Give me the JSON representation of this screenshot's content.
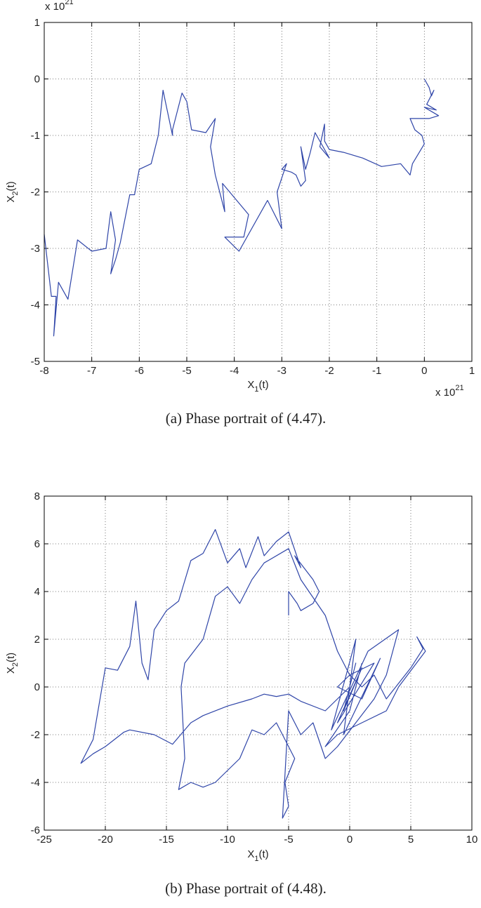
{
  "chart_data": [
    {
      "type": "line",
      "caption": "(a)  Phase portrait of (4.47).",
      "xlabel": [
        "X",
        "1",
        "(t)"
      ],
      "ylabel": [
        "X",
        "2",
        "(t)"
      ],
      "x_multiplier": [
        "x 10",
        "21"
      ],
      "y_multiplier": [
        "x 10",
        "21"
      ],
      "xlim": [
        -8,
        1
      ],
      "ylim": [
        -5,
        1
      ],
      "xticks": [
        -8,
        -7,
        -6,
        -5,
        -4,
        -3,
        -2,
        -1,
        0,
        1
      ],
      "yticks": [
        -5,
        -4,
        -3,
        -2,
        -1,
        0,
        1
      ],
      "grid": true,
      "series": [
        {
          "color": "#2f45a8",
          "x": [
            0,
            0.1,
            0.15,
            0.2,
            0.05,
            0.25,
            0,
            0.3,
            0.1,
            -0.3,
            -0.2,
            -0.05,
            0,
            -0.25,
            -0.3,
            -0.5,
            -0.9,
            -1.3,
            -1.7,
            -2.0,
            -2.1,
            -2.1,
            -2.2,
            -2.0,
            -2.3,
            -2.4,
            -2.5,
            -2.6,
            -2.5,
            -2.6,
            -2.7,
            -2.8,
            -3.0,
            -2.9,
            -3.1,
            -3.0,
            -3.3,
            -3.9,
            -4.2,
            -3.8,
            -3.7,
            -4.25,
            -4.2,
            -4.4,
            -4.5,
            -4.4,
            -4.6,
            -4.9,
            -5.0,
            -5.1,
            -5.3,
            -5.3,
            -5.45,
            -5.5,
            -5.6,
            -5.75,
            -6.0,
            -6.1,
            -6.2,
            -6.4,
            -6.5,
            -6.6,
            -6.5,
            -6.6,
            -6.7,
            -7.0,
            -7.3,
            -7.5,
            -7.7,
            -7.8,
            -7.75,
            -7.85,
            -8.0
          ],
          "y": [
            0,
            -0.15,
            -0.3,
            -0.2,
            -0.45,
            -0.55,
            -0.5,
            -0.65,
            -0.7,
            -0.7,
            -0.9,
            -1.0,
            -1.15,
            -1.5,
            -1.7,
            -1.5,
            -1.55,
            -1.4,
            -1.3,
            -1.25,
            -1.1,
            -0.8,
            -1.2,
            -1.4,
            -0.95,
            -1.3,
            -1.6,
            -1.2,
            -1.8,
            -1.9,
            -1.7,
            -1.65,
            -1.6,
            -1.5,
            -2.0,
            -2.65,
            -2.15,
            -3.05,
            -2.8,
            -2.8,
            -2.4,
            -1.85,
            -2.35,
            -1.7,
            -1.2,
            -0.7,
            -0.95,
            -0.9,
            -0.4,
            -0.25,
            -0.9,
            -1.0,
            -0.4,
            -0.2,
            -1.0,
            -1.5,
            -1.6,
            -2.05,
            -2.05,
            -2.9,
            -3.2,
            -3.45,
            -2.85,
            -2.35,
            -3.0,
            -3.05,
            -2.85,
            -3.9,
            -3.6,
            -4.55,
            -3.85,
            -3.85,
            -2.75
          ]
        }
      ]
    },
    {
      "type": "line",
      "caption": "(b)  Phase portrait of (4.48).",
      "xlabel": [
        "X",
        "1",
        "(t)"
      ],
      "ylabel": [
        "X",
        "2",
        "(t)"
      ],
      "xlim": [
        -25,
        10
      ],
      "ylim": [
        -6,
        8
      ],
      "xticks": [
        -25,
        -20,
        -15,
        -10,
        -5,
        0,
        5,
        10
      ],
      "yticks": [
        -6,
        -4,
        -2,
        0,
        2,
        4,
        6,
        8
      ],
      "grid": true,
      "series": [
        {
          "color": "#2f45a8",
          "x": [
            -5,
            -5,
            -4.3,
            -4,
            -3,
            -2.5,
            -3,
            -4.5,
            -4,
            -5,
            -6,
            -7,
            -7.5,
            -8.5,
            -9,
            -10,
            -11,
            -12,
            -13,
            -14,
            -15,
            -16,
            -16.5,
            -17,
            -17.5,
            -18,
            -19,
            -20,
            -21,
            -22,
            -21,
            -20,
            -18.5,
            -18,
            -16,
            -14.5,
            -13,
            -12,
            -10,
            -8,
            -7,
            -6,
            -5,
            -4,
            -2,
            -1,
            0,
            0.5,
            -0.5,
            1,
            -1,
            2,
            0,
            -1,
            1,
            2.5,
            -0.5,
            0.5,
            -1.5,
            1.5,
            4,
            3,
            2,
            -1,
            -2,
            -3,
            -4,
            -5,
            -5.5,
            -5,
            -5.3,
            -4.5,
            -6,
            -7,
            -8,
            -9,
            -10,
            -11,
            -12,
            -13,
            -14,
            -13.5,
            -13.8,
            -13.5,
            -12,
            -11,
            -10,
            -9,
            -8,
            -7,
            -5,
            -4,
            -2,
            -1,
            0,
            1,
            2,
            3,
            5,
            6,
            5.5,
            6.2,
            4,
            3,
            1,
            -1,
            -2,
            0,
            1
          ],
          "y": [
            3,
            4,
            3.5,
            3.2,
            3.5,
            4,
            4.5,
            5.5,
            5,
            6.5,
            6.1,
            5.5,
            6.3,
            5,
            5.8,
            5.2,
            6.6,
            5.6,
            5.3,
            3.6,
            3.2,
            2.4,
            0.3,
            1,
            3.6,
            1.7,
            0.7,
            0.8,
            -2.2,
            -3.2,
            -2.8,
            -2.5,
            -1.9,
            -1.8,
            -2,
            -2.4,
            -1.5,
            -1.2,
            -0.8,
            -0.5,
            -0.3,
            -0.4,
            -0.3,
            -0.6,
            -1,
            -0.5,
            0,
            1,
            -1,
            0.8,
            -1.5,
            1,
            0.5,
            0,
            -0.5,
            1.2,
            -2,
            2,
            -1.8,
            1.5,
            2.4,
            0.5,
            -0.5,
            -2.5,
            -3,
            -1.5,
            -2,
            -1,
            -5.5,
            -5,
            -4,
            -3,
            -1.5,
            -2,
            -1.8,
            -3,
            -3.5,
            -4,
            -4.2,
            -4,
            -4.3,
            -3,
            0,
            1,
            2,
            3.8,
            4.2,
            3.5,
            4.5,
            5.2,
            5.8,
            4.5,
            3,
            1.5,
            0.5,
            0,
            0.5,
            -0.5,
            0.8,
            1.6,
            2.1,
            1.5,
            0,
            -1,
            -1.5,
            -2,
            -2.5,
            -1,
            1
          ]
        }
      ]
    }
  ]
}
